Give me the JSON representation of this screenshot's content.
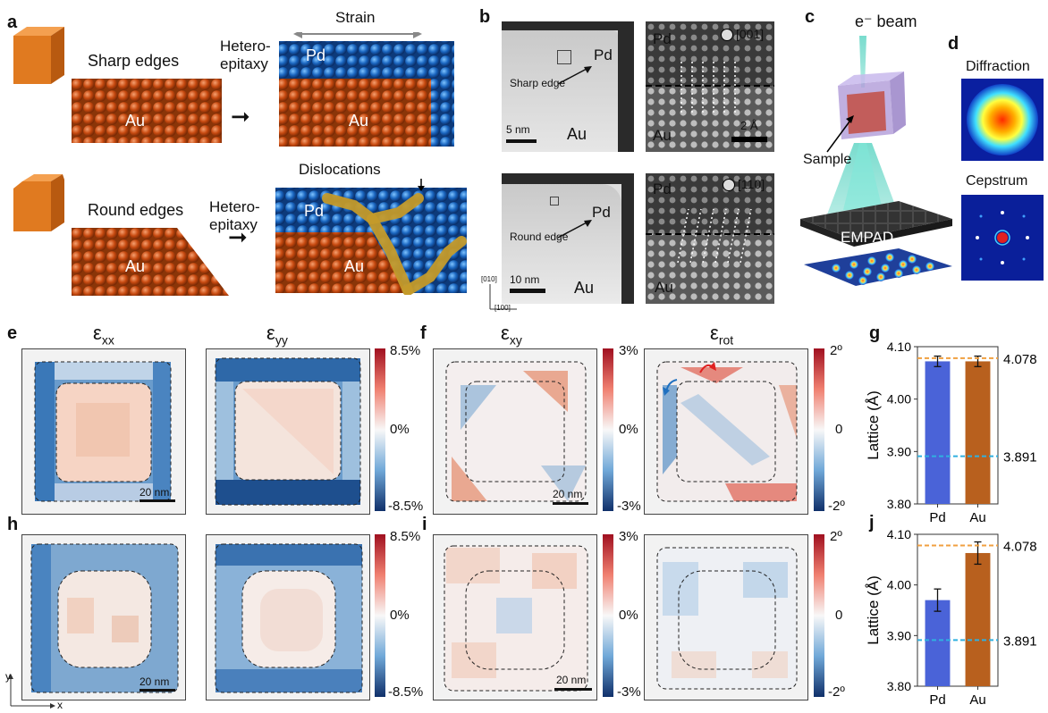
{
  "panel_labels": [
    "a",
    "b",
    "c",
    "d",
    "e",
    "f",
    "g",
    "h",
    "i",
    "j"
  ],
  "panel_a": {
    "top": {
      "edge_label": "Sharp edges",
      "process_label": "Hetero-\nepitaxy",
      "strain_label": "Strain",
      "pd_label": "Pd",
      "au_label_left": "Au",
      "au_label_right": "Au"
    },
    "bottom": {
      "edge_label": "Round edges",
      "process_label": "Hetero-\nepitaxy",
      "dislocations_label": "Dislocations",
      "pd_label": "Pd",
      "au_label_left": "Au",
      "au_label_right": "Au"
    }
  },
  "panel_b": {
    "top_left": {
      "pd": "Pd",
      "au": "Au",
      "edge": "Sharp edge",
      "scale": "5 nm"
    },
    "top_right": {
      "pd": "Pd",
      "au": "Au",
      "zone": "[001]",
      "scale": "2 Å"
    },
    "bottom_left": {
      "pd": "Pd",
      "au": "Au",
      "edge": "Round edge",
      "scale": "10 nm",
      "axis_y": "[010]",
      "axis_x": "[100]"
    },
    "bottom_right": {
      "pd": "Pd",
      "au": "Au",
      "zone": "[110]"
    }
  },
  "panel_c": {
    "beam": "e⁻ beam",
    "sample": "Sample",
    "detector": "EMPAD"
  },
  "panel_d": {
    "diffraction": "Diffraction",
    "cepstrum": "Cepstrum"
  },
  "maps": {
    "titles": {
      "exx": "ε",
      "exx_sub": "xx",
      "eyy": "ε",
      "eyy_sub": "yy",
      "exy": "ε",
      "exy_sub": "xy",
      "erot": "ε",
      "erot_sub": "rot"
    },
    "scale_bar": "20 nm",
    "cbar_e": {
      "top": "8.5%",
      "mid": "0%",
      "bot": "-8.5%"
    },
    "cbar_f": {
      "top": "3%",
      "mid": "0%",
      "bot": "-3%"
    },
    "cbar_rot": {
      "top": "2º",
      "mid": "0",
      "bot": "-2º"
    },
    "axes": {
      "y": "y",
      "x": "x"
    }
  },
  "chart_data": [
    {
      "type": "bar",
      "panel": "g",
      "categories": [
        "Pd",
        "Au"
      ],
      "values": [
        4.072,
        4.072
      ],
      "errors": [
        0.01,
        0.01
      ],
      "colors": [
        "#4a63d8",
        "#b8601e"
      ],
      "ylabel": "Lattice (Å)",
      "ylim": [
        3.8,
        4.1
      ],
      "yticks": [
        "3.80",
        "3.90",
        "4.00",
        "4.10"
      ],
      "ref_lines": [
        {
          "value": 4.078,
          "label": "4.078",
          "color": "#f0a040"
        },
        {
          "value": 3.891,
          "label": "3.891",
          "color": "#30b0e0"
        }
      ]
    },
    {
      "type": "bar",
      "panel": "j",
      "categories": [
        "Pd",
        "Au"
      ],
      "values": [
        3.97,
        4.063
      ],
      "errors": [
        0.022,
        0.022
      ],
      "colors": [
        "#4a63d8",
        "#b8601e"
      ],
      "ylabel": "Lattice (Å)",
      "ylim": [
        3.8,
        4.1
      ],
      "yticks": [
        "3.80",
        "3.90",
        "4.00",
        "4.10"
      ],
      "ref_lines": [
        {
          "value": 4.078,
          "label": "4.078",
          "color": "#f0a040"
        },
        {
          "value": 3.891,
          "label": "3.891",
          "color": "#30b0e0"
        }
      ]
    }
  ]
}
